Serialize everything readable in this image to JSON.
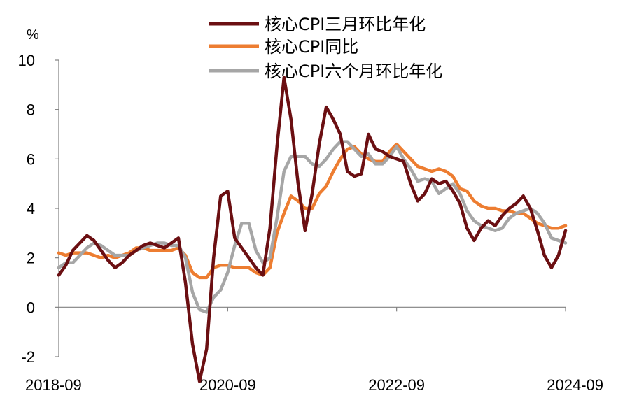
{
  "chart_data": {
    "type": "line",
    "unit": "%",
    "ylim": [
      -2,
      10
    ],
    "yticks": [
      -2,
      0,
      2,
      4,
      6,
      8,
      10
    ],
    "xticks": [
      "2018-09",
      "2020-09",
      "2022-09",
      "2024-09"
    ],
    "xlim": [
      "2018-09",
      "2024-09"
    ],
    "grid": false,
    "legend_position": "top-right",
    "series": [
      {
        "name": "核心CPI三月环比年化",
        "color": "#6b0f12",
        "x": [
          "2018-09",
          "2018-10",
          "2018-11",
          "2018-12",
          "2019-01",
          "2019-02",
          "2019-03",
          "2019-04",
          "2019-05",
          "2019-06",
          "2019-07",
          "2019-08",
          "2019-09",
          "2019-10",
          "2019-11",
          "2019-12",
          "2020-01",
          "2020-02",
          "2020-03",
          "2020-04",
          "2020-05",
          "2020-06",
          "2020-07",
          "2020-08",
          "2020-09",
          "2020-10",
          "2020-11",
          "2020-12",
          "2021-01",
          "2021-02",
          "2021-03",
          "2021-04",
          "2021-05",
          "2021-06",
          "2021-07",
          "2021-08",
          "2021-09",
          "2021-10",
          "2021-11",
          "2021-12",
          "2022-01",
          "2022-02",
          "2022-03",
          "2022-04",
          "2022-05",
          "2022-06",
          "2022-07",
          "2022-08",
          "2022-09",
          "2022-10",
          "2022-11",
          "2022-12",
          "2023-01",
          "2023-02",
          "2023-03",
          "2023-04",
          "2023-05",
          "2023-06",
          "2023-07",
          "2023-08",
          "2023-09",
          "2023-10",
          "2023-11",
          "2023-12",
          "2024-01",
          "2024-02",
          "2024-03",
          "2024-04",
          "2024-05",
          "2024-06",
          "2024-07",
          "2024-08",
          "2024-09"
        ],
        "values": [
          1.3,
          1.7,
          2.3,
          2.6,
          2.9,
          2.7,
          2.3,
          1.9,
          1.6,
          1.8,
          2.1,
          2.3,
          2.5,
          2.6,
          2.5,
          2.4,
          2.6,
          2.8,
          1.0,
          -1.5,
          -3.0,
          -1.7,
          2.0,
          4.5,
          4.7,
          2.8,
          2.4,
          2.0,
          1.6,
          1.3,
          3.2,
          6.5,
          9.3,
          7.6,
          5.0,
          3.1,
          4.6,
          6.6,
          8.1,
          7.6,
          7.0,
          5.5,
          5.3,
          5.4,
          7.0,
          6.4,
          6.3,
          6.1,
          6.0,
          5.9,
          5.0,
          4.3,
          4.6,
          5.2,
          5.0,
          5.1,
          4.7,
          4.2,
          3.2,
          2.7,
          3.2,
          3.5,
          3.3,
          3.7,
          4.0,
          4.2,
          4.5,
          4.0,
          3.1,
          2.1,
          1.6,
          2.1,
          3.1
        ]
      },
      {
        "name": "核心CPI同比",
        "color": "#ed7d31",
        "x": [
          "2018-09",
          "2018-10",
          "2018-11",
          "2018-12",
          "2019-01",
          "2019-02",
          "2019-03",
          "2019-04",
          "2019-05",
          "2019-06",
          "2019-07",
          "2019-08",
          "2019-09",
          "2019-10",
          "2019-11",
          "2019-12",
          "2020-01",
          "2020-02",
          "2020-03",
          "2020-04",
          "2020-05",
          "2020-06",
          "2020-07",
          "2020-08",
          "2020-09",
          "2020-10",
          "2020-11",
          "2020-12",
          "2021-01",
          "2021-02",
          "2021-03",
          "2021-04",
          "2021-05",
          "2021-06",
          "2021-07",
          "2021-08",
          "2021-09",
          "2021-10",
          "2021-11",
          "2021-12",
          "2022-01",
          "2022-02",
          "2022-03",
          "2022-04",
          "2022-05",
          "2022-06",
          "2022-07",
          "2022-08",
          "2022-09",
          "2022-10",
          "2022-11",
          "2022-12",
          "2023-01",
          "2023-02",
          "2023-03",
          "2023-04",
          "2023-05",
          "2023-06",
          "2023-07",
          "2023-08",
          "2023-09",
          "2023-10",
          "2023-11",
          "2023-12",
          "2024-01",
          "2024-02",
          "2024-03",
          "2024-04",
          "2024-05",
          "2024-06",
          "2024-07",
          "2024-08",
          "2024-09"
        ],
        "values": [
          2.2,
          2.1,
          2.2,
          2.2,
          2.2,
          2.1,
          2.0,
          2.1,
          2.0,
          2.1,
          2.2,
          2.4,
          2.4,
          2.3,
          2.3,
          2.3,
          2.3,
          2.4,
          2.1,
          1.4,
          1.2,
          1.2,
          1.6,
          1.7,
          1.7,
          1.6,
          1.6,
          1.6,
          1.4,
          1.3,
          1.6,
          3.0,
          3.8,
          4.5,
          4.3,
          4.0,
          4.0,
          4.6,
          4.9,
          5.5,
          6.0,
          6.4,
          6.5,
          6.2,
          6.0,
          5.9,
          5.9,
          6.3,
          6.6,
          6.3,
          6.0,
          5.7,
          5.6,
          5.5,
          5.6,
          5.5,
          5.3,
          4.8,
          4.7,
          4.3,
          4.1,
          4.0,
          4.0,
          3.9,
          3.9,
          3.8,
          3.8,
          3.6,
          3.4,
          3.3,
          3.2,
          3.2,
          3.3
        ]
      },
      {
        "name": "核心CPI六个月环比年化",
        "color": "#a6a6a6",
        "x": [
          "2018-09",
          "2018-10",
          "2018-11",
          "2018-12",
          "2019-01",
          "2019-02",
          "2019-03",
          "2019-04",
          "2019-05",
          "2019-06",
          "2019-07",
          "2019-08",
          "2019-09",
          "2019-10",
          "2019-11",
          "2019-12",
          "2020-01",
          "2020-02",
          "2020-03",
          "2020-04",
          "2020-05",
          "2020-06",
          "2020-07",
          "2020-08",
          "2020-09",
          "2020-10",
          "2020-11",
          "2020-12",
          "2021-01",
          "2021-02",
          "2021-03",
          "2021-04",
          "2021-05",
          "2021-06",
          "2021-07",
          "2021-08",
          "2021-09",
          "2021-10",
          "2021-11",
          "2021-12",
          "2022-01",
          "2022-02",
          "2022-03",
          "2022-04",
          "2022-05",
          "2022-06",
          "2022-07",
          "2022-08",
          "2022-09",
          "2022-10",
          "2022-11",
          "2022-12",
          "2023-01",
          "2023-02",
          "2023-03",
          "2023-04",
          "2023-05",
          "2023-06",
          "2023-07",
          "2023-08",
          "2023-09",
          "2023-10",
          "2023-11",
          "2023-12",
          "2024-01",
          "2024-02",
          "2024-03",
          "2024-04",
          "2024-05",
          "2024-06",
          "2024-07",
          "2024-08",
          "2024-09"
        ],
        "values": [
          1.6,
          1.8,
          1.8,
          2.1,
          2.4,
          2.6,
          2.5,
          2.3,
          2.1,
          2.1,
          2.1,
          2.3,
          2.4,
          2.5,
          2.6,
          2.6,
          2.5,
          2.5,
          2.0,
          0.6,
          -0.1,
          -0.2,
          0.4,
          0.7,
          1.4,
          2.5,
          3.4,
          3.4,
          2.3,
          1.8,
          2.0,
          3.6,
          5.5,
          6.1,
          6.1,
          6.1,
          5.8,
          5.7,
          6.0,
          6.4,
          6.7,
          6.7,
          6.4,
          6.1,
          6.2,
          5.8,
          5.8,
          6.1,
          6.5,
          6.0,
          5.6,
          5.1,
          5.2,
          5.1,
          4.6,
          4.8,
          5.0,
          4.6,
          3.9,
          3.5,
          3.3,
          3.2,
          3.1,
          3.2,
          3.6,
          3.8,
          3.9,
          4.0,
          3.8,
          3.4,
          2.8,
          2.7,
          2.6
        ]
      }
    ]
  }
}
